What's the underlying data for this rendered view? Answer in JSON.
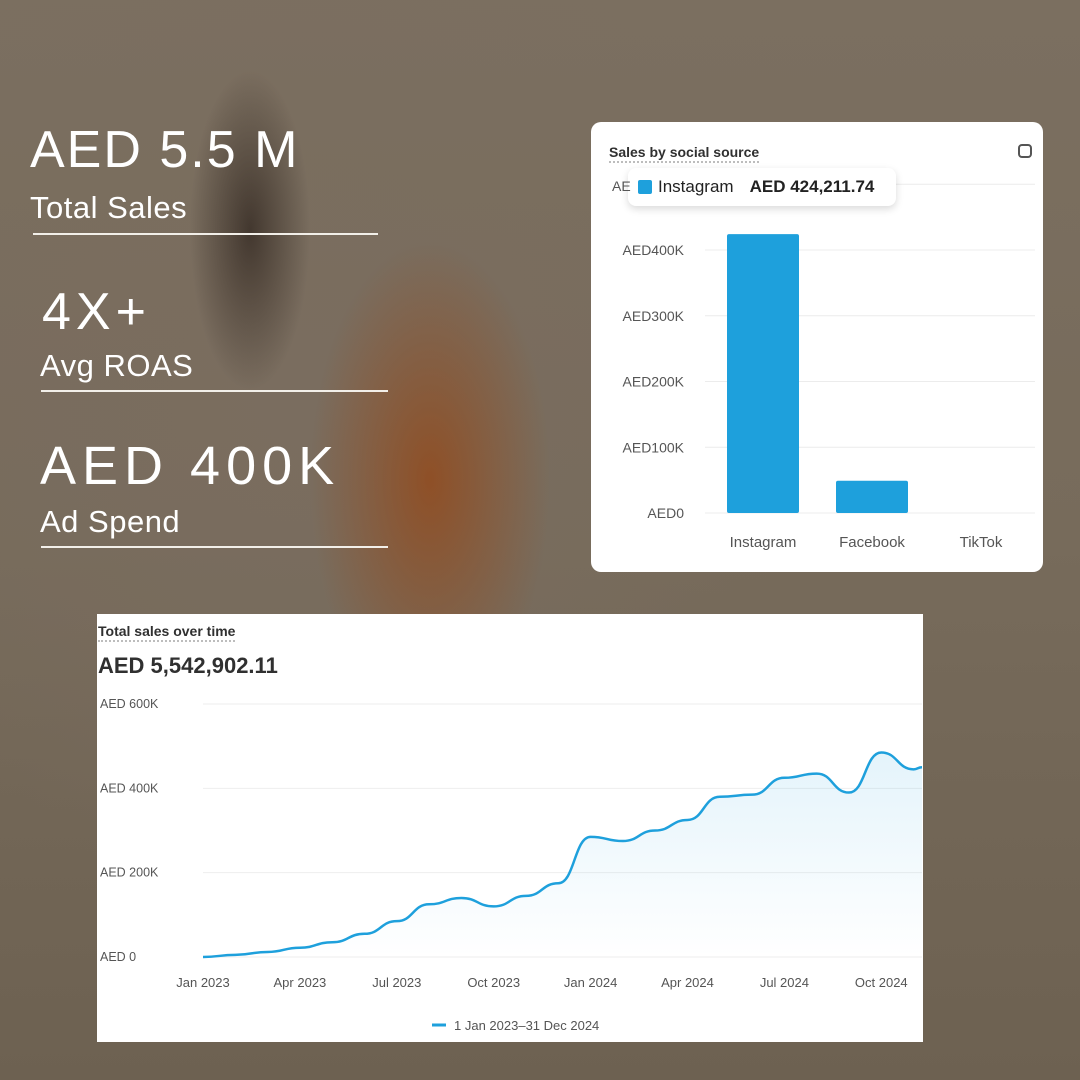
{
  "stats": [
    {
      "value": "AED 5.5 M",
      "label": "Total Sales"
    },
    {
      "value": "4X+",
      "label": "Avg ROAS"
    },
    {
      "value": "AED 400K",
      "label": "Ad Spend"
    }
  ],
  "colors": {
    "accent": "#1ea0dc",
    "text": "#303030",
    "card": "#ffffff"
  },
  "chart_data": [
    {
      "type": "bar",
      "title": "Sales by social source",
      "icon": "chart-zoom-icon",
      "categories": [
        "Instagram",
        "Facebook",
        "TikTok"
      ],
      "values": [
        424211.74,
        49000,
        0
      ],
      "ylim": [
        0,
        500000
      ],
      "yticks": [
        0,
        100000,
        200000,
        300000,
        400000
      ],
      "ytick_labels": [
        "AED0",
        "AED100K",
        "AED200K",
        "AED300K",
        "AED400K"
      ],
      "grid": true,
      "tooltip": {
        "series": "Instagram",
        "value": "AED 424,211.74"
      }
    },
    {
      "type": "area",
      "title": "Total sales over time",
      "total": "AED 5,542,902.11",
      "x": [
        "2023-01",
        "2023-02",
        "2023-03",
        "2023-04",
        "2023-05",
        "2023-06",
        "2023-07",
        "2023-08",
        "2023-09",
        "2023-10",
        "2023-11",
        "2023-12",
        "2024-01",
        "2024-02",
        "2024-03",
        "2024-04",
        "2024-05",
        "2024-06",
        "2024-07",
        "2024-08",
        "2024-09",
        "2024-10",
        "2024-11"
      ],
      "series": [
        {
          "name": "1 Jan 2023–31 Dec 2024",
          "values": [
            0,
            5000,
            12000,
            22000,
            35000,
            55000,
            85000,
            125000,
            140000,
            120000,
            145000,
            175000,
            285000,
            275000,
            300000,
            325000,
            380000,
            385000,
            425000,
            435000,
            390000,
            485000,
            445000
          ]
        }
      ],
      "ylim": [
        0,
        600000
      ],
      "yticks": [
        0,
        200000,
        400000,
        600000
      ],
      "ytick_labels": [
        "AED 0",
        "AED 200K",
        "AED 400K",
        "AED 600K"
      ],
      "xtick_labels": [
        "Jan 2023",
        "Apr 2023",
        "Jul 2023",
        "Oct 2023",
        "Jan 2024",
        "Apr 2024",
        "Jul 2024",
        "Oct 2024"
      ],
      "grid": true,
      "legend": "bottom"
    }
  ]
}
